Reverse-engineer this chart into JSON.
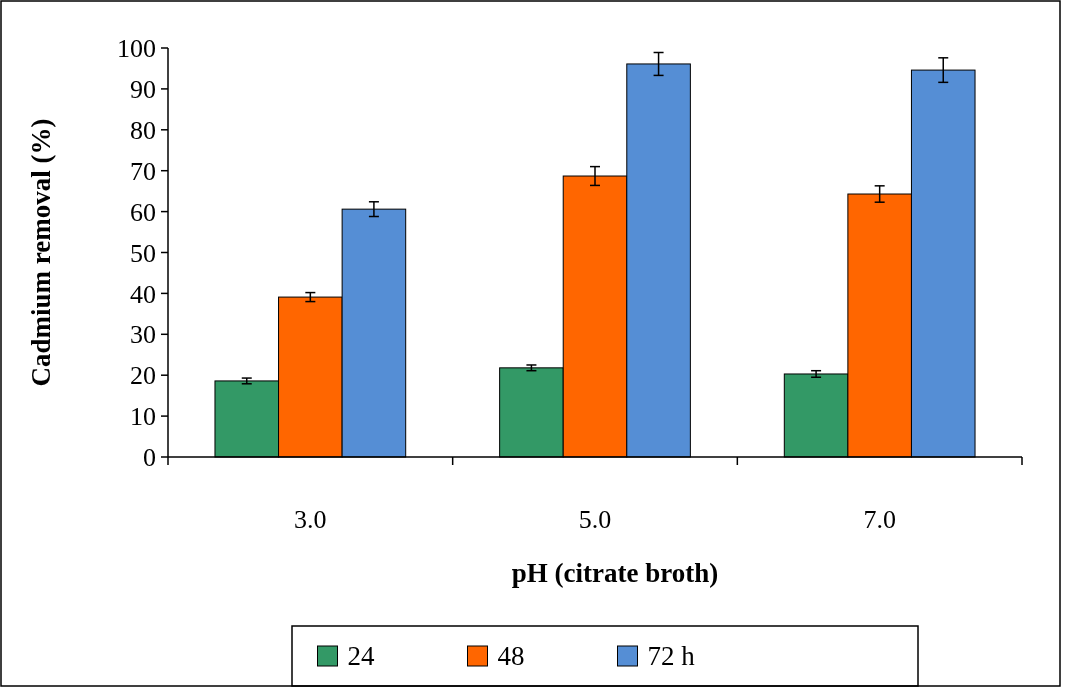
{
  "chart_data": {
    "type": "bar",
    "xlabel": "pH (citrate  broth)",
    "ylabel": "Cadmium removal (%)",
    "categories": [
      "3.0",
      "5.0",
      "7.0"
    ],
    "series": [
      {
        "name": "24",
        "color": "#339966",
        "values": [
          18.6,
          21.8,
          20.3
        ],
        "errors": [
          0.7,
          0.7,
          0.8
        ]
      },
      {
        "name": "48",
        "color": "#ff6600",
        "values": [
          39.1,
          68.7,
          64.3
        ],
        "errors": [
          1.1,
          2.3,
          2.0
        ]
      },
      {
        "name": "72 h",
        "color": "#558ed5",
        "values": [
          60.6,
          96.1,
          94.6
        ],
        "errors": [
          1.8,
          2.8,
          3.0
        ]
      }
    ],
    "ylim": [
      0,
      100
    ],
    "yticks": [
      0,
      10,
      20,
      30,
      40,
      50,
      60,
      70,
      80,
      90,
      100
    ],
    "grid": false,
    "legend": "bottom"
  }
}
